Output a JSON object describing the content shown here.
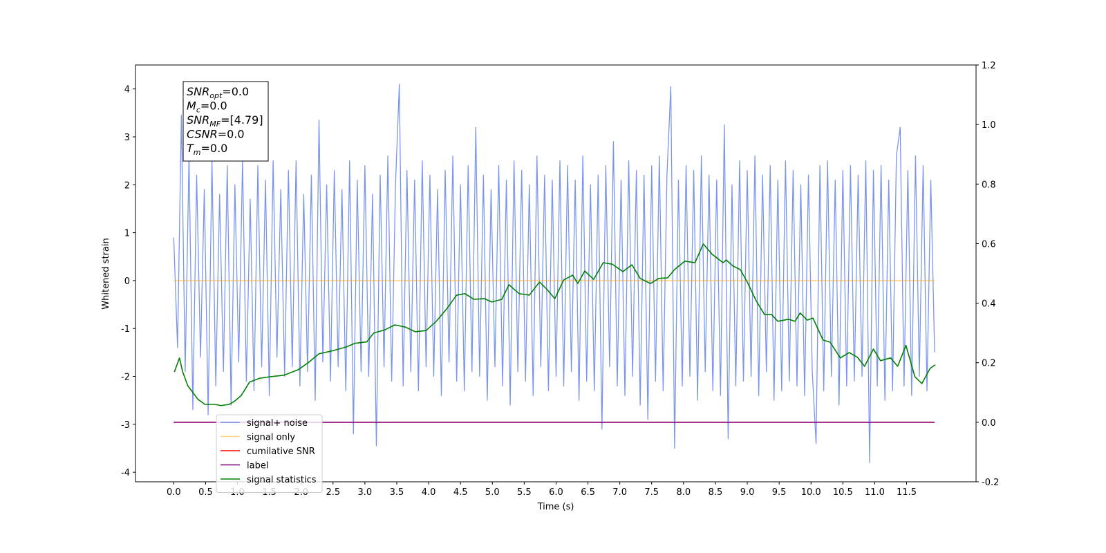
{
  "chart_data": {
    "type": "line",
    "xlabel": "Time (s)",
    "ylabel": "Whitened strain",
    "xlim": [
      -0.6,
      12.59
    ],
    "ylim": [
      -4.2,
      4.5
    ],
    "y2lim": [
      -0.2,
      1.2
    ],
    "xticks": [
      {
        "value": 0,
        "label": "0.0"
      },
      0.5,
      {
        "value": 1,
        "label": "1.0"
      },
      1.5,
      {
        "value": 2,
        "label": "2.0"
      },
      2.5,
      {
        "value": 3,
        "label": "3.0"
      },
      3.5,
      {
        "value": 4,
        "label": "4.0"
      },
      4.5,
      {
        "value": 5,
        "label": "5.0"
      },
      5.5,
      {
        "value": 6,
        "label": "6.0"
      },
      6.5,
      {
        "value": 7,
        "label": "7.0"
      },
      7.5,
      {
        "value": 8,
        "label": "8.0"
      },
      8.5,
      {
        "value": 9,
        "label": "9.0"
      },
      9.5,
      {
        "value": 10,
        "label": "10.0"
      },
      10.5,
      {
        "value": 11,
        "label": "11.0"
      },
      11.5
    ],
    "yticks": [
      -4,
      -3,
      -2,
      -1,
      0,
      1,
      2,
      3,
      4
    ],
    "y2ticks": [
      -0.2,
      {
        "value": 0,
        "label": "0.0"
      },
      0.2,
      0.4,
      0.6,
      0.8,
      {
        "value": 1,
        "label": "1.0"
      },
      1.2
    ],
    "grid": false,
    "legend": "lower left",
    "annotation": [
      {
        "symbol": "SNR",
        "sub": "opt",
        "text": "=0.0"
      },
      {
        "symbol": "M",
        "sub": "c",
        "text": "=0.0"
      },
      {
        "symbol": "SNR",
        "sub": "MF",
        "text": "=[4.79]"
      },
      {
        "symbol": "CSNR",
        "text": "=0.0"
      },
      {
        "symbol": "T",
        "sub": "m",
        "text": "=0.0"
      }
    ],
    "series": [
      {
        "name": "signal+ noise",
        "color": "#4169e1",
        "alpha": 0.7,
        "x": [
          0,
          0.06,
          0.12,
          0.18,
          0.24,
          0.3,
          0.36,
          0.42,
          0.48,
          0.54,
          0.6,
          0.66,
          0.72,
          0.78,
          0.84,
          0.9,
          0.96,
          1.02,
          1.08,
          1.14,
          1.2,
          1.26,
          1.32,
          1.38,
          1.44,
          1.5,
          1.56,
          1.62,
          1.68,
          1.74,
          1.8,
          1.86,
          1.92,
          1.98,
          2.04,
          2.1,
          2.16,
          2.22,
          2.28,
          2.34,
          2.4,
          2.46,
          2.52,
          2.58,
          2.64,
          2.7,
          2.76,
          2.82,
          2.88,
          2.94,
          3,
          3.06,
          3.12,
          3.18,
          3.24,
          3.3,
          3.36,
          3.42,
          3.48,
          3.54,
          3.6,
          3.66,
          3.72,
          3.78,
          3.84,
          3.9,
          3.96,
          4.02,
          4.08,
          4.14,
          4.2,
          4.26,
          4.32,
          4.38,
          4.44,
          4.5,
          4.56,
          4.62,
          4.68,
          4.74,
          4.8,
          4.86,
          4.92,
          4.98,
          5.04,
          5.1,
          5.16,
          5.22,
          5.28,
          5.34,
          5.4,
          5.46,
          5.52,
          5.58,
          5.64,
          5.7,
          5.76,
          5.82,
          5.88,
          5.94,
          6,
          6.06,
          6.12,
          6.18,
          6.24,
          6.3,
          6.36,
          6.42,
          6.48,
          6.54,
          6.6,
          6.66,
          6.72,
          6.78,
          6.84,
          6.9,
          6.96,
          7.02,
          7.08,
          7.14,
          7.2,
          7.26,
          7.32,
          7.38,
          7.44,
          7.5,
          7.56,
          7.62,
          7.68,
          7.74,
          7.8,
          7.86,
          7.92,
          7.98,
          8.04,
          8.1,
          8.16,
          8.22,
          8.28,
          8.34,
          8.4,
          8.46,
          8.52,
          8.58,
          8.64,
          8.7,
          8.76,
          8.82,
          8.88,
          8.94,
          9,
          9.06,
          9.12,
          9.18,
          9.24,
          9.3,
          9.36,
          9.42,
          9.48,
          9.54,
          9.6,
          9.66,
          9.72,
          9.78,
          9.84,
          9.9,
          9.96,
          10.02,
          10.08,
          10.14,
          10.2,
          10.26,
          10.32,
          10.38,
          10.44,
          10.5,
          10.56,
          10.62,
          10.68,
          10.74,
          10.8,
          10.86,
          10.92,
          10.98,
          11.04,
          11.1,
          11.16,
          11.22,
          11.28,
          11.34,
          11.4,
          11.46,
          11.52,
          11.58,
          11.64,
          11.7,
          11.76,
          11.82,
          11.88,
          11.94
        ],
        "values": [
          0.9,
          -1.4,
          3.45,
          -1.9,
          2.6,
          -2.7,
          2.2,
          -1.6,
          1.9,
          -2.8,
          2.5,
          -2.2,
          1.8,
          -1.9,
          2.4,
          -2.6,
          2.0,
          -1.7,
          2.5,
          -2.1,
          1.7,
          -2.3,
          2.4,
          -1.8,
          2.1,
          -2.4,
          2.5,
          -1.6,
          1.9,
          -2.0,
          2.3,
          -1.8,
          2.5,
          -2.2,
          1.8,
          -1.9,
          2.2,
          -2.5,
          3.35,
          -1.7,
          2.0,
          -2.1,
          2.3,
          -1.8,
          1.9,
          -2.3,
          2.5,
          -3.2,
          2.1,
          -1.9,
          2.4,
          -2.0,
          1.8,
          -3.45,
          2.2,
          -1.8,
          2.6,
          -2.1,
          2.0,
          4.1,
          -2.2,
          2.3,
          -1.9,
          2.1,
          -2.3,
          2.5,
          -1.8,
          2.2,
          -2.0,
          1.9,
          -2.4,
          2.3,
          -1.7,
          2.6,
          -2.1,
          2.0,
          -2.3,
          2.4,
          -1.9,
          3.2,
          -2.0,
          2.2,
          -2.5,
          1.9,
          -1.8,
          2.4,
          -2.2,
          2.1,
          -2.6,
          2.5,
          -1.9,
          2.3,
          -2.1,
          2.0,
          -2.4,
          2.6,
          -1.8,
          2.2,
          -2.3,
          2.1,
          -2.0,
          2.5,
          -2.2,
          2.4,
          -1.9,
          2.1,
          -2.5,
          2.6,
          -2.1,
          2.0,
          -2.3,
          2.2,
          -3.1,
          2.4,
          -1.8,
          2.9,
          -2.2,
          2.1,
          -2.4,
          2.5,
          -2.0,
          2.3,
          -2.6,
          2.2,
          -2.9,
          2.4,
          -2.1,
          2.6,
          -2.3,
          2.2,
          4.05,
          -3.5,
          2.1,
          -2.2,
          2.4,
          -2.0,
          2.3,
          -2.5,
          2.6,
          -1.9,
          2.2,
          -2.3,
          2.1,
          -2.4,
          3.25,
          -3.3,
          2.0,
          -2.2,
          2.5,
          -2.1,
          2.3,
          -2.0,
          2.6,
          -2.4,
          2.2,
          -1.9,
          2.4,
          -2.5,
          2.1,
          -2.3,
          2.5,
          -2.1,
          2.3,
          -2.2,
          2.0,
          -2.4,
          2.2,
          -1.9,
          -3.4,
          2.4,
          -2.3,
          2.5,
          -2.0,
          2.1,
          -2.6,
          2.3,
          -2.2,
          2.4,
          -2.1,
          2.2,
          -2.0,
          2.5,
          -3.8,
          2.3,
          -2.2,
          2.4,
          -2.5,
          2.1,
          -2.3,
          2.6,
          3.2,
          -2.2,
          2.3,
          -2.4,
          2.6,
          -2.0,
          2.4,
          -2.3,
          2.1,
          -1.5
        ]
      },
      {
        "name": "signal only",
        "color": "#ffa500",
        "alpha": 0.5,
        "x": [
          0,
          11.94
        ],
        "values": [
          0,
          0
        ]
      },
      {
        "name": "cumilative SNR",
        "color": "#ff0000",
        "alpha": 1,
        "axis": "y2",
        "x": [
          0,
          11.94
        ],
        "values": [
          0,
          0
        ]
      },
      {
        "name": "label",
        "color": "#800080",
        "alpha": 1,
        "axis": "y2",
        "x": [
          0,
          11.94
        ],
        "values": [
          0,
          0
        ]
      },
      {
        "name": "signal statistics",
        "color": "#008000",
        "alpha": 1,
        "axis": "y2",
        "x": [
          0.01,
          0.09,
          0.14,
          0.22,
          0.38,
          0.49,
          0.65,
          0.74,
          0.87,
          0.95,
          1.06,
          1.19,
          1.35,
          1.52,
          1.73,
          1.95,
          2.11,
          2.28,
          2.49,
          2.71,
          2.84,
          3.03,
          3.14,
          3.31,
          3.47,
          3.63,
          3.79,
          3.96,
          4.12,
          4.28,
          4.44,
          4.57,
          4.71,
          4.88,
          4.99,
          5.15,
          5.26,
          5.42,
          5.58,
          5.74,
          5.85,
          5.98,
          6.12,
          6.26,
          6.34,
          6.45,
          6.59,
          6.74,
          6.88,
          7.05,
          7.19,
          7.32,
          7.48,
          7.61,
          7.75,
          7.86,
          8.02,
          8.18,
          8.31,
          8.45,
          8.62,
          8.67,
          8.78,
          8.89,
          9.0,
          9.14,
          9.27,
          9.38,
          9.48,
          9.65,
          9.75,
          9.83,
          9.94,
          10.03,
          10.19,
          10.3,
          10.46,
          10.6,
          10.73,
          10.84,
          10.98,
          11.09,
          11.25,
          11.36,
          11.49,
          11.63,
          11.74,
          11.87,
          11.95
        ],
        "values": [
          0.169,
          0.216,
          0.17,
          0.123,
          0.077,
          0.06,
          0.06,
          0.056,
          0.06,
          0.07,
          0.09,
          0.135,
          0.148,
          0.153,
          0.158,
          0.176,
          0.2,
          0.23,
          0.24,
          0.253,
          0.265,
          0.27,
          0.3,
          0.31,
          0.327,
          0.32,
          0.304,
          0.308,
          0.339,
          0.38,
          0.427,
          0.432,
          0.413,
          0.415,
          0.404,
          0.413,
          0.462,
          0.432,
          0.427,
          0.471,
          0.448,
          0.415,
          0.478,
          0.494,
          0.466,
          0.508,
          0.48,
          0.536,
          0.531,
          0.506,
          0.529,
          0.483,
          0.466,
          0.483,
          0.485,
          0.513,
          0.541,
          0.536,
          0.599,
          0.564,
          0.536,
          0.545,
          0.524,
          0.513,
          0.471,
          0.408,
          0.362,
          0.362,
          0.339,
          0.346,
          0.339,
          0.367,
          0.343,
          0.35,
          0.276,
          0.269,
          0.216,
          0.234,
          0.218,
          0.188,
          0.246,
          0.207,
          0.216,
          0.188,
          0.258,
          0.153,
          0.13,
          0.181,
          0.193
        ]
      }
    ]
  }
}
